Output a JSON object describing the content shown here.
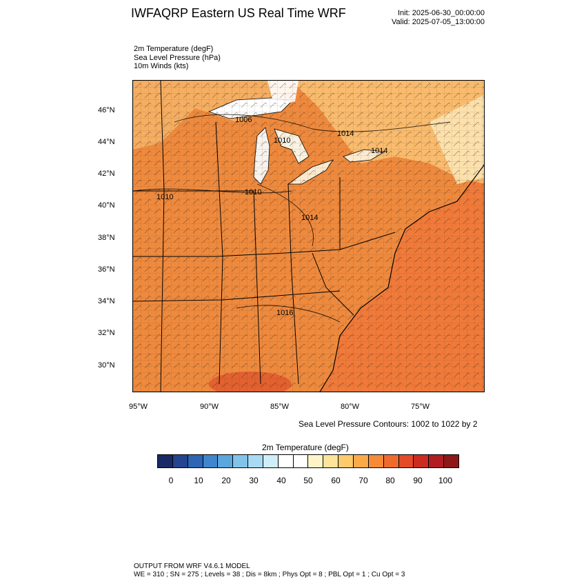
{
  "header": {
    "title": "IWFAQRP Eastern US Real Time WRF",
    "init": "Init: 2025-06-30_00:00:00",
    "valid": "Valid: 2025-07-05_13:00:00"
  },
  "fields": [
    "2m Temperature   (degF)",
    "Sea Level Pressure   (hPa)",
    "10m Winds   (kts)"
  ],
  "map": {
    "lat_labels": [
      "46°N",
      "44°N",
      "42°N",
      "40°N",
      "38°N",
      "36°N",
      "34°N",
      "32°N",
      "30°N"
    ],
    "lon_labels": [
      "95°W",
      "90°W",
      "85°W",
      "80°W",
      "75°W"
    ],
    "isobar_labels": [
      "1006",
      "1014",
      "1010",
      "1014",
      "1010",
      "1010",
      "1014",
      "1016"
    ],
    "colors": {
      "land": "#ef8a3c",
      "ocean": "#f07a3a",
      "cool": "#fbe3a8",
      "lakes": "#ffffff",
      "borders": "#000000"
    }
  },
  "slp_note": "Sea Level Pressure Contours: 1002 to 1022 by 2",
  "colorbar": {
    "title": "2m Temperature  (degF)",
    "ticks": [
      "0",
      "10",
      "20",
      "30",
      "40",
      "50",
      "60",
      "70",
      "80",
      "90",
      "100"
    ],
    "colors": [
      "#1a2a66",
      "#23448e",
      "#2e65b5",
      "#3f86cc",
      "#5aa7dd",
      "#82c3ea",
      "#a9daf4",
      "#d0edfa",
      "#ffffff",
      "#ffffff",
      "#fff4c8",
      "#fee39a",
      "#fdca6c",
      "#fbaa4a",
      "#f68a37",
      "#ef6b2d",
      "#e34a27",
      "#cc2b22",
      "#b11d22",
      "#8e1719"
    ]
  },
  "footer": {
    "line1": "OUTPUT FROM WRF V4.6.1 MODEL",
    "line2": "WE = 310 ; SN = 275 ; Levels = 38 ; Dis = 8km ; Phys Opt = 8 ; PBL Opt = 1 ; Cu Opt = 3"
  }
}
